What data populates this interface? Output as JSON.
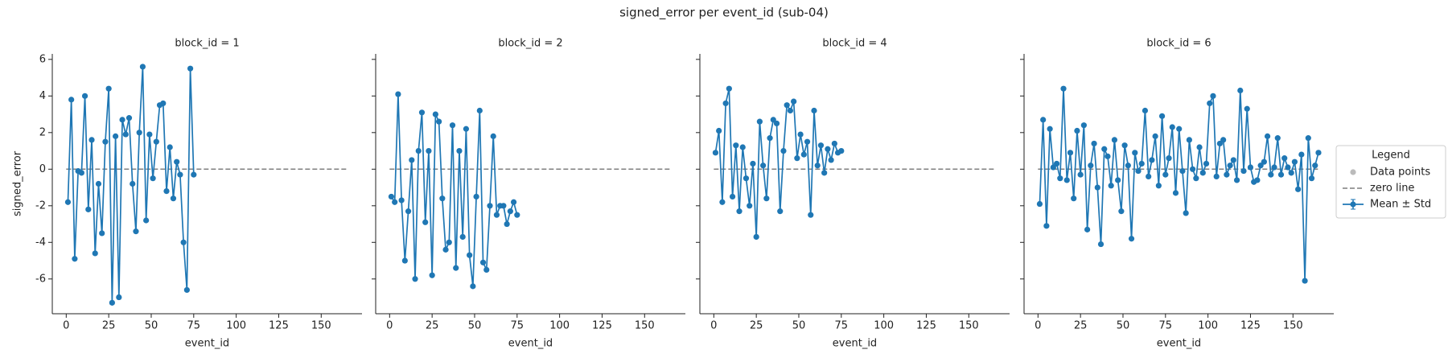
{
  "figure": {
    "title": "signed_error per event_id (sub-04)"
  },
  "legend": {
    "title": "Legend",
    "entries": [
      {
        "name": "Data points",
        "color": "#bbbbbb",
        "kind": "marker"
      },
      {
        "name": "zero line",
        "color": "#7f7f7f",
        "kind": "dashed"
      },
      {
        "name": "Mean ± Std",
        "color": "#1f77b4",
        "kind": "errorbar"
      }
    ]
  },
  "chart_data": [
    {
      "type": "line",
      "title": "block_id = 1",
      "x_label": "event_id",
      "y_label": "signed_error",
      "x": [
        1,
        3,
        5,
        7,
        9,
        11,
        13,
        15,
        17,
        19,
        21,
        23,
        25,
        27,
        29,
        31,
        33,
        35,
        37,
        39,
        41,
        43,
        45,
        47,
        49,
        51,
        53,
        55,
        57,
        59,
        61,
        63,
        65,
        67,
        69,
        71,
        73,
        75
      ],
      "series": [
        {
          "color": "#1f77b4",
          "values": [
            -1.8,
            3.8,
            -4.9,
            -0.1,
            -0.2,
            4.0,
            -2.2,
            1.6,
            -4.6,
            -0.8,
            -3.5,
            1.5,
            4.4,
            -7.3,
            1.8,
            -7.0,
            2.7,
            1.9,
            2.8,
            -0.8,
            -3.4,
            2.0,
            5.6,
            -2.8,
            1.9,
            -0.5,
            1.5,
            3.5,
            3.6,
            -1.2,
            1.2,
            -1.6,
            0.4,
            -0.3,
            -4.0,
            -6.6,
            5.5,
            -0.3
          ]
        }
      ],
      "hline": {
        "y": 0,
        "xmin": 0,
        "xmax": 165
      },
      "xlim": [
        -8.2,
        174
      ],
      "ylim": [
        -7.9,
        6.3
      ],
      "xticks": [
        0,
        25,
        50,
        75,
        100,
        125,
        150
      ],
      "yticks": [
        -6,
        -4,
        -2,
        0,
        2,
        4,
        6
      ],
      "show_ytick_labels": true
    },
    {
      "type": "line",
      "title": "block_id = 2",
      "x_label": "event_id",
      "x": [
        1,
        3,
        5,
        7,
        9,
        11,
        13,
        15,
        17,
        19,
        21,
        23,
        25,
        27,
        29,
        31,
        33,
        35,
        37,
        39,
        41,
        43,
        45,
        47,
        49,
        51,
        53,
        55,
        57,
        59,
        61,
        63,
        65,
        67,
        69,
        71,
        73,
        75
      ],
      "series": [
        {
          "color": "#1f77b4",
          "values": [
            -1.5,
            -1.8,
            4.1,
            -1.7,
            -5.0,
            -2.3,
            0.5,
            -6.0,
            1.0,
            3.1,
            -2.9,
            1.0,
            -5.8,
            3.0,
            2.6,
            -1.6,
            -4.4,
            -4.0,
            2.4,
            -5.4,
            1.0,
            -3.7,
            2.2,
            -4.7,
            -6.4,
            -1.5,
            3.2,
            -5.1,
            -5.5,
            -2.0,
            1.8,
            -2.5,
            -2.0,
            -2.0,
            -3.0,
            -2.3,
            -1.8,
            -2.5
          ]
        }
      ],
      "hline": {
        "y": 0,
        "xmin": 0,
        "xmax": 165
      },
      "xlim": [
        -8.2,
        174
      ],
      "ylim": [
        -7.9,
        6.3
      ],
      "xticks": [
        0,
        25,
        50,
        75,
        100,
        125,
        150
      ],
      "yticks": [
        -6,
        -4,
        -2,
        0,
        2,
        4,
        6
      ],
      "show_ytick_labels": false
    },
    {
      "type": "line",
      "title": "block_id = 4",
      "x_label": "event_id",
      "x": [
        1,
        3,
        5,
        7,
        9,
        11,
        13,
        15,
        17,
        19,
        21,
        23,
        25,
        27,
        29,
        31,
        33,
        35,
        37,
        39,
        41,
        43,
        45,
        47,
        49,
        51,
        53,
        55,
        57,
        59,
        61,
        63,
        65,
        67,
        69,
        71,
        73,
        75
      ],
      "series": [
        {
          "color": "#1f77b4",
          "values": [
            0.9,
            2.1,
            -1.8,
            3.6,
            4.4,
            -1.5,
            1.3,
            -2.3,
            1.2,
            -0.5,
            -2.0,
            0.3,
            -3.7,
            2.6,
            0.2,
            -1.6,
            1.7,
            2.7,
            2.5,
            -2.3,
            1.0,
            3.5,
            3.2,
            3.7,
            0.6,
            1.9,
            0.8,
            1.5,
            -2.5,
            3.2,
            0.2,
            1.3,
            -0.2,
            1.1,
            0.5,
            1.4,
            0.9,
            1.0
          ]
        }
      ],
      "hline": {
        "y": 0,
        "xmin": 0,
        "xmax": 165
      },
      "xlim": [
        -8.2,
        174
      ],
      "ylim": [
        -7.9,
        6.3
      ],
      "xticks": [
        0,
        25,
        50,
        75,
        100,
        125,
        150
      ],
      "yticks": [
        -6,
        -4,
        -2,
        0,
        2,
        4,
        6
      ],
      "show_ytick_labels": false
    },
    {
      "type": "line",
      "title": "block_id = 6",
      "x_label": "event_id",
      "x": [
        1,
        3,
        5,
        7,
        9,
        11,
        13,
        15,
        17,
        19,
        21,
        23,
        25,
        27,
        29,
        31,
        33,
        35,
        37,
        39,
        41,
        43,
        45,
        47,
        49,
        51,
        53,
        55,
        57,
        59,
        61,
        63,
        65,
        67,
        69,
        71,
        73,
        75,
        77,
        79,
        81,
        83,
        85,
        87,
        89,
        91,
        93,
        95,
        97,
        99,
        101,
        103,
        105,
        107,
        109,
        111,
        113,
        115,
        117,
        119,
        121,
        123,
        125,
        127,
        129,
        131,
        133,
        135,
        137,
        139,
        141,
        143,
        145,
        147,
        149,
        151,
        153,
        155,
        157,
        159,
        161,
        163,
        165
      ],
      "series": [
        {
          "color": "#1f77b4",
          "values": [
            -1.9,
            2.7,
            -3.1,
            2.2,
            0.1,
            0.3,
            -0.5,
            4.4,
            -0.6,
            0.9,
            -1.6,
            2.1,
            -0.3,
            2.4,
            -3.3,
            0.2,
            1.4,
            -1.0,
            -4.1,
            1.1,
            0.7,
            -0.9,
            1.6,
            -0.6,
            -2.3,
            1.3,
            0.2,
            -3.8,
            0.9,
            -0.1,
            0.3,
            3.2,
            -0.4,
            0.5,
            1.8,
            -0.9,
            2.9,
            -0.3,
            0.6,
            2.3,
            -1.3,
            2.2,
            -0.1,
            -2.4,
            1.6,
            0.0,
            -0.5,
            1.2,
            -0.2,
            0.3,
            3.6,
            4.0,
            -0.4,
            1.4,
            1.6,
            -0.3,
            0.2,
            0.5,
            -0.6,
            4.3,
            -0.1,
            3.3,
            0.1,
            -0.7,
            -0.6,
            0.2,
            0.4,
            1.8,
            -0.3,
            0.1,
            1.7,
            -0.3,
            0.6,
            0.1,
            -0.2,
            0.4,
            -1.1,
            0.8,
            -6.1,
            1.7,
            -0.5,
            0.2,
            0.9
          ]
        }
      ],
      "hline": {
        "y": 0,
        "xmin": 0,
        "xmax": 165
      },
      "xlim": [
        -8.2,
        174
      ],
      "ylim": [
        -7.9,
        6.3
      ],
      "xticks": [
        0,
        25,
        50,
        75,
        100,
        125,
        150
      ],
      "yticks": [
        -6,
        -4,
        -2,
        0,
        2,
        4,
        6
      ],
      "show_ytick_labels": false
    }
  ]
}
